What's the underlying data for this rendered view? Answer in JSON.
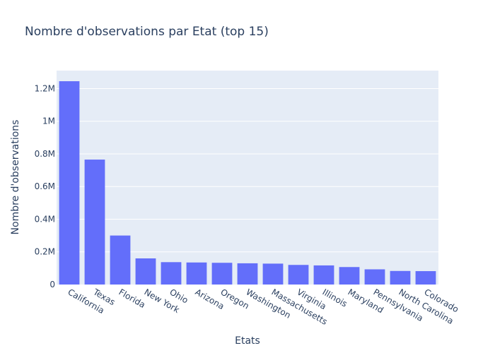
{
  "chart_data": {
    "type": "bar",
    "title": "Nombre d'observations par Etat (top 15)",
    "xlabel": "Etats",
    "ylabel": "Nombre d'observations",
    "categories": [
      "California",
      "Texas",
      "Florida",
      "New York",
      "Ohio",
      "Arizona",
      "Oregon",
      "Washington",
      "Massachusetts",
      "Virginia",
      "Illinois",
      "Maryland",
      "Pennsylvania",
      "North Carolina",
      "Colorado"
    ],
    "values": [
      1245000,
      765000,
      300000,
      160000,
      137000,
      135000,
      133000,
      130000,
      128000,
      120000,
      117000,
      107000,
      93000,
      83000,
      82000
    ],
    "ylim": [
      0,
      1310000
    ],
    "yticks": [
      0,
      200000,
      400000,
      600000,
      800000,
      1000000,
      1200000
    ],
    "ytick_labels": [
      "0",
      "0.2M",
      "0.4M",
      "0.6M",
      "0.8M",
      "1M",
      "1.2M"
    ],
    "grid": true,
    "colors": {
      "bar": "#636efa",
      "plot_bg": "#e5ecf6",
      "grid": "#ffffff",
      "text": "#2a3f5f"
    }
  }
}
